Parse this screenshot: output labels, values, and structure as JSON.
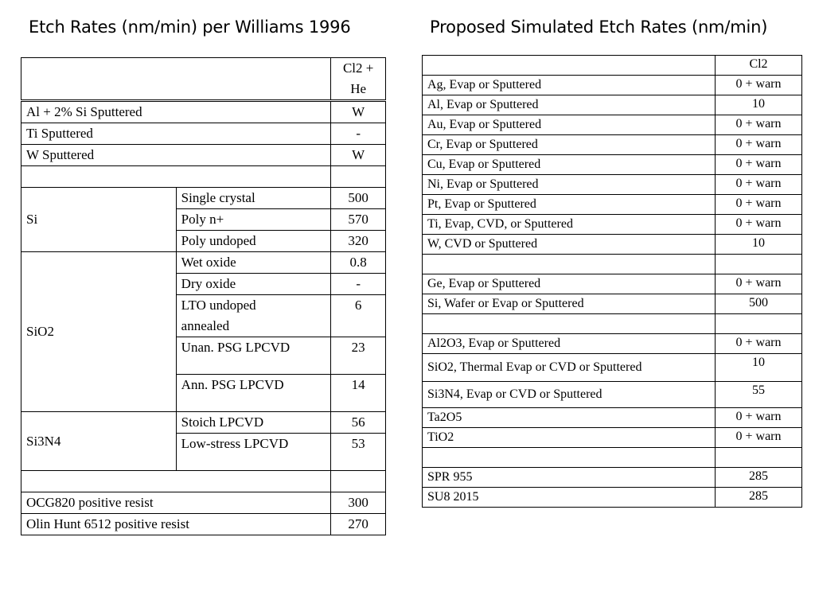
{
  "left": {
    "title": "Etch Rates (nm/min) per Williams 1996",
    "header": "Cl2 +\nHe",
    "rows_top": [
      {
        "label": "Al + 2% Si Sputtered",
        "value": "W"
      },
      {
        "label": "Ti Sputtered",
        "value": "-"
      },
      {
        "label": "W Sputtered",
        "value": "W"
      }
    ],
    "si": {
      "group": "Si",
      "rows": [
        {
          "label": "Single crystal",
          "value": "500"
        },
        {
          "label": "Poly n+",
          "value": "570"
        },
        {
          "label": "Poly undoped",
          "value": "320"
        }
      ]
    },
    "sio2": {
      "group": "SiO2",
      "rows": [
        {
          "label": "Wet oxide",
          "value": "0.8"
        },
        {
          "label": "Dry oxide",
          "value": "-"
        },
        {
          "label": "LTO undoped\nannealed",
          "value": "6"
        },
        {
          "label": "Unan. PSG LPCVD",
          "value": "23"
        },
        {
          "label": "Ann. PSG LPCVD",
          "value": "14"
        }
      ]
    },
    "si3n4": {
      "group": "Si3N4",
      "rows": [
        {
          "label": "Stoich LPCVD",
          "value": "56"
        },
        {
          "label": "Low-stress LPCVD",
          "value": "53"
        }
      ]
    },
    "rows_bottom": [
      {
        "label": "OCG820 positive resist",
        "value": "300"
      },
      {
        "label": "Olin Hunt 6512 positive resist",
        "value": "270"
      }
    ]
  },
  "right": {
    "title": "Proposed Simulated Etch Rates (nm/min)",
    "header": "Cl2",
    "rows": [
      {
        "label": "Ag, Evap or Sputtered",
        "value": "0 + warn"
      },
      {
        "label": "Al, Evap or Sputtered",
        "value": "10"
      },
      {
        "label": "Au, Evap or Sputtered",
        "value": "0 + warn"
      },
      {
        "label": "Cr, Evap or Sputtered",
        "value": "0 + warn"
      },
      {
        "label": "Cu, Evap or Sputtered",
        "value": "0 + warn"
      },
      {
        "label": "Ni, Evap or Sputtered",
        "value": "0 + warn"
      },
      {
        "label": "Pt, Evap or Sputtered",
        "value": "0 + warn"
      },
      {
        "label": "Ti, Evap, CVD, or Sputtered",
        "value": "0 + warn"
      },
      {
        "label": "W, CVD or Sputtered",
        "value": "10"
      },
      {
        "label": "",
        "value": ""
      },
      {
        "label": "Ge, Evap or Sputtered",
        "value": "0 + warn"
      },
      {
        "label": "Si, Wafer or Evap or Sputtered",
        "value": "500"
      },
      {
        "label": "",
        "value": ""
      },
      {
        "label": "Al2O3, Evap or Sputtered",
        "value": "0 + warn"
      },
      {
        "label": "SiO2, Thermal Evap or CVD or Sputtered",
        "value": "10"
      },
      {
        "label": "Si3N4, Evap or CVD or Sputtered",
        "value": "55"
      },
      {
        "label": "Ta2O5",
        "value": "0 + warn"
      },
      {
        "label": "TiO2",
        "value": "0 + warn"
      },
      {
        "label": "",
        "value": ""
      },
      {
        "label": "SPR 955",
        "value": "285"
      },
      {
        "label": "SU8 2015",
        "value": "285"
      }
    ]
  }
}
